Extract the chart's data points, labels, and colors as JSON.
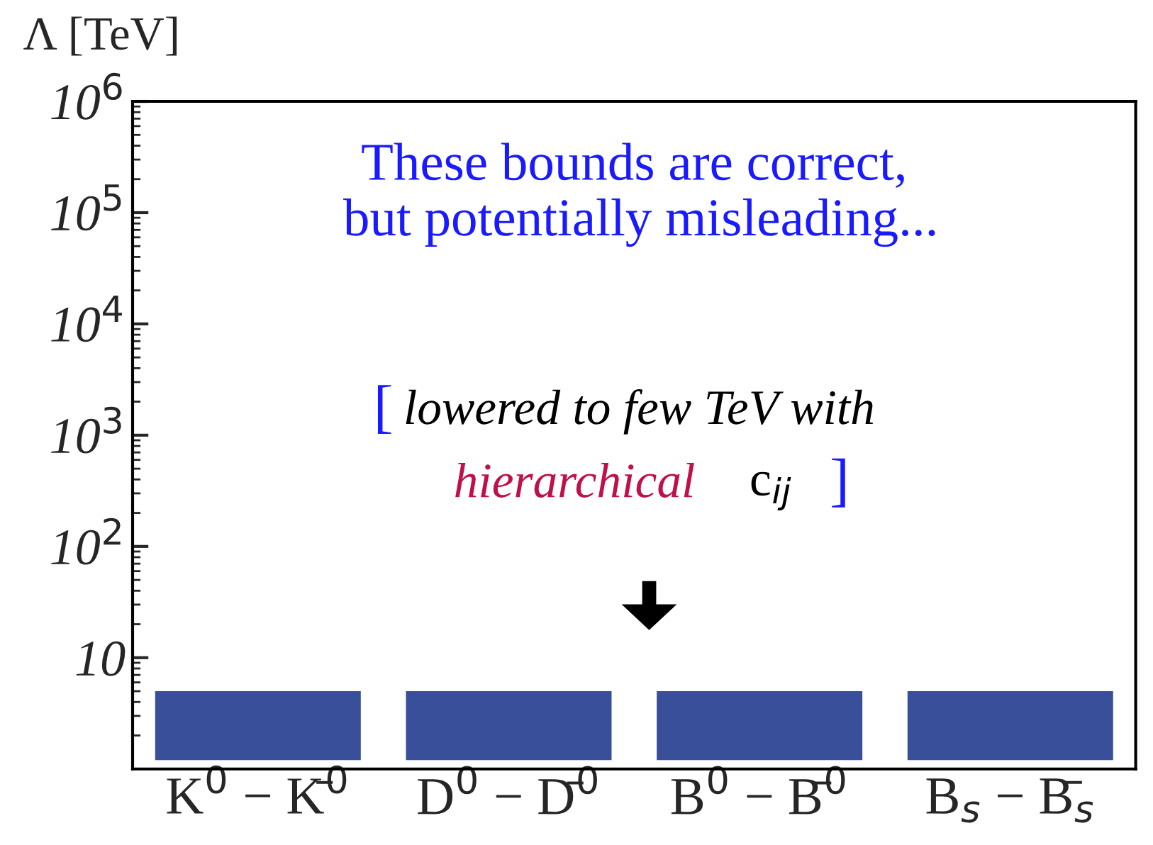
{
  "chart_data": {
    "type": "bar",
    "ylabel": "Λ [TeV]",
    "categories": [
      "K$^{0}$ − K̄$^{0}$",
      "D$^{0}$ − D̄$^{0}$",
      "B$^{0}$ − B̄$^{0}$",
      "B$_{s}$ − B̄$_{s}$"
    ],
    "base": [
      1.2,
      1.2,
      1.2,
      1.2
    ],
    "values": [
      3.8,
      3.8,
      3.8,
      3.8
    ],
    "color": "#3a4f9a",
    "log": true,
    "ylim": [
      1,
      1000000
    ],
    "yticks": [
      10,
      {
        "value": 100,
        "label": "10$^{2}$"
      },
      {
        "value": 1000,
        "label": "10$^{3}$"
      },
      {
        "value": 10000,
        "label": "10$^{4}$"
      },
      {
        "value": 100000,
        "label": "10$^{5}$"
      },
      {
        "value": 1000000,
        "label": "10$^{6}$"
      }
    ],
    "grid": false,
    "annotations": [
      "These bounds are correct,\n but potentially misleading...",
      "[",
      "lowered to few TeV with",
      "hierarchical",
      "c$_{ij}$",
      "]"
    ]
  }
}
